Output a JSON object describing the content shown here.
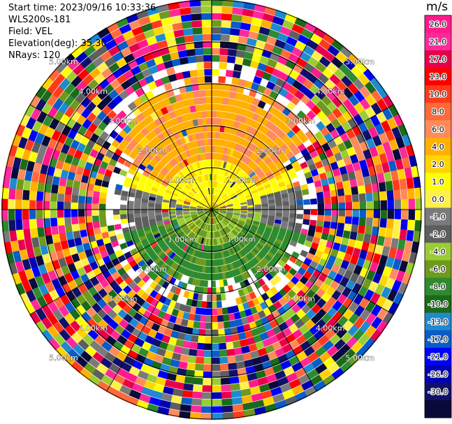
{
  "header": {
    "start_time": "Start time: 2023/09/16 10:33:36",
    "site": "WLS200s-181",
    "field": "Field: VEL",
    "elevation": "Elevation(deg): 35.30",
    "nrays": "NRays: 120"
  },
  "chart_data": {
    "type": "ppi",
    "field": "VEL",
    "unit": "m/s",
    "elevation_deg": 35.3,
    "n_rays": 120,
    "range_rings": [
      {
        "label": "1.00km"
      },
      {
        "label": "2.00km"
      },
      {
        "label": "3.00km"
      },
      {
        "label": "4.00km"
      },
      {
        "label": "5.00km"
      }
    ],
    "colorbar": {
      "unit": "m/s",
      "ticks": [
        "26.0",
        "21.0",
        "17.0",
        "13.0",
        "10.0",
        "8.0",
        "6.0",
        "4.0",
        "2.0",
        "1.0",
        "0.0",
        "-1.0",
        "-2.0",
        "-4.0",
        "-6.0",
        "-8.0",
        "-10.0",
        "-13.0",
        "-17.0",
        "-21.0",
        "-26.0",
        "-30.0"
      ],
      "colors": [
        "#ff1a8c",
        "#ff2a9a",
        "#e8004a",
        "#ff0000",
        "#ff3a1a",
        "#ff6a3a",
        "#ff8a5a",
        "#ffb000",
        "#ffd400",
        "#ffff00",
        "#fff04a",
        "#7a7a7a",
        "#5e5e5e",
        "#9acd32",
        "#6e9a1e",
        "#2e8b2e",
        "#1a6a1a",
        "#1e8ad0",
        "#0a5cc8",
        "#0000ff",
        "#0000b4",
        "#10106a",
        "#0a0a3a"
      ]
    },
    "observed_pattern": {
      "north": "positive 2.0 to 6.0 m/s (yellow / orange) out to ~2.5 km",
      "south": "negative -2.0 to -6.0 m/s (green) out to ~2.5 km",
      "east_west_near": "near 0.0 m/s (gray)",
      "far_range": "noise, all colors"
    }
  }
}
